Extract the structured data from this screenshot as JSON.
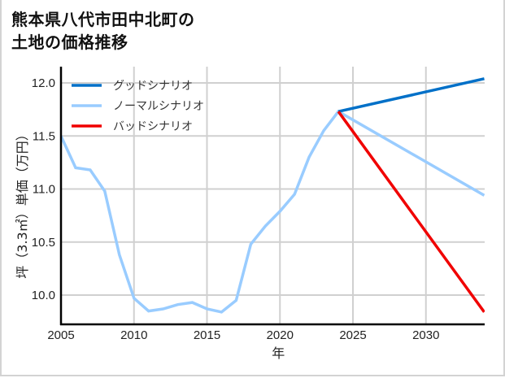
{
  "title": "熊本県八代市田中北町の\n土地の価格推移",
  "chart_data": {
    "type": "line",
    "title": "熊本県八代市田中北町の土地の価格推移",
    "xlabel": "年",
    "ylabel": "坪（3.3㎡）単価（万円）",
    "xlim": [
      2005,
      2034
    ],
    "ylim": [
      9.72,
      12.2
    ],
    "x_ticks": [
      2005,
      2010,
      2015,
      2020,
      2025,
      2030
    ],
    "y_ticks": [
      10.0,
      10.5,
      11.0,
      11.5,
      12.0
    ],
    "x_tick_labels": [
      "2005",
      "2010",
      "2015",
      "2020",
      "2025",
      "2030"
    ],
    "y_tick_labels": [
      "10.0",
      "10.5",
      "11.0",
      "11.5",
      "12.0"
    ],
    "grid": true,
    "legend_position": "upper left",
    "series": [
      {
        "name": "グッドシナリオ",
        "color": "#0070c8",
        "x": [
          2024,
          2034
        ],
        "values": [
          11.73,
          12.04
        ]
      },
      {
        "name": "ノーマルシナリオ",
        "color": "#99ccff",
        "x": [
          2005,
          2006,
          2007,
          2008,
          2009,
          2010,
          2011,
          2012,
          2013,
          2014,
          2015,
          2016,
          2017,
          2018,
          2019,
          2020,
          2021,
          2022,
          2023,
          2024,
          2034
        ],
        "values": [
          11.5,
          11.2,
          11.18,
          10.98,
          10.38,
          9.97,
          9.85,
          9.87,
          9.91,
          9.93,
          9.87,
          9.84,
          9.95,
          10.48,
          10.65,
          10.79,
          10.95,
          11.3,
          11.55,
          11.73,
          10.94
        ]
      },
      {
        "name": "バッドシナリオ",
        "color": "#f00000",
        "x": [
          2024,
          2034
        ],
        "values": [
          11.73,
          9.84
        ]
      }
    ]
  }
}
